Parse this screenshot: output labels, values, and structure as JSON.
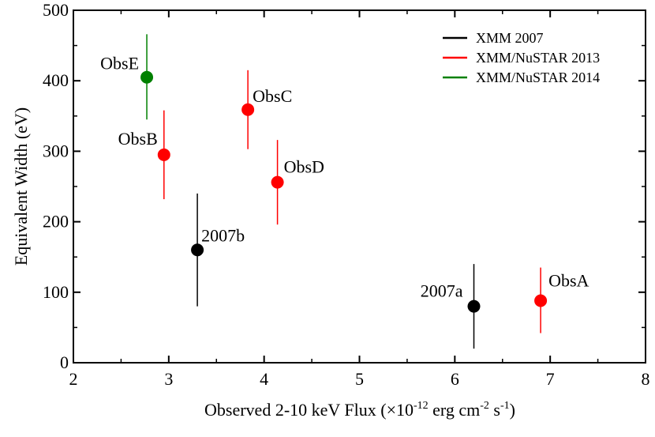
{
  "chart_data": {
    "type": "scatter",
    "xlabel": "Observed 2-10 keV Flux (×10^-12 erg cm^-2 s^-1)",
    "xlabel_parts": {
      "pre": "Observed 2-10 keV Flux (×10",
      "exp1": "-12",
      "mid1": " erg cm",
      "exp2": "-2",
      "mid2": " s",
      "exp3": "-1",
      "post": ")"
    },
    "ylabel": "Equivalent Width (eV)",
    "xlim": [
      2,
      8
    ],
    "ylim": [
      0,
      500
    ],
    "x_ticks": [
      2,
      3,
      4,
      5,
      6,
      7,
      8
    ],
    "y_ticks": [
      0,
      100,
      200,
      300,
      400,
      500
    ],
    "grid": false,
    "legend_position": "top-right",
    "series": [
      {
        "name": "XMM 2007",
        "color": "#000000",
        "points": [
          {
            "label": "2007b",
            "x": 3.3,
            "y": 160,
            "y_low": 80,
            "y_high": 240
          },
          {
            "label": "2007a",
            "x": 6.2,
            "y": 80,
            "y_low": 20,
            "y_high": 140
          }
        ]
      },
      {
        "name": "XMM/NuSTAR 2013",
        "color": "#ff0000",
        "points": [
          {
            "label": "ObsB",
            "x": 2.95,
            "y": 295,
            "y_low": 232,
            "y_high": 358
          },
          {
            "label": "ObsC",
            "x": 3.83,
            "y": 359,
            "y_low": 303,
            "y_high": 415
          },
          {
            "label": "ObsD",
            "x": 4.14,
            "y": 256,
            "y_low": 196,
            "y_high": 316
          },
          {
            "label": "ObsA",
            "x": 6.9,
            "y": 88,
            "y_low": 42,
            "y_high": 135
          }
        ]
      },
      {
        "name": "XMM/NuSTAR 2014",
        "color": "#008000",
        "points": [
          {
            "label": "ObsE",
            "x": 2.77,
            "y": 405,
            "y_low": 345,
            "y_high": 466
          }
        ]
      }
    ]
  }
}
